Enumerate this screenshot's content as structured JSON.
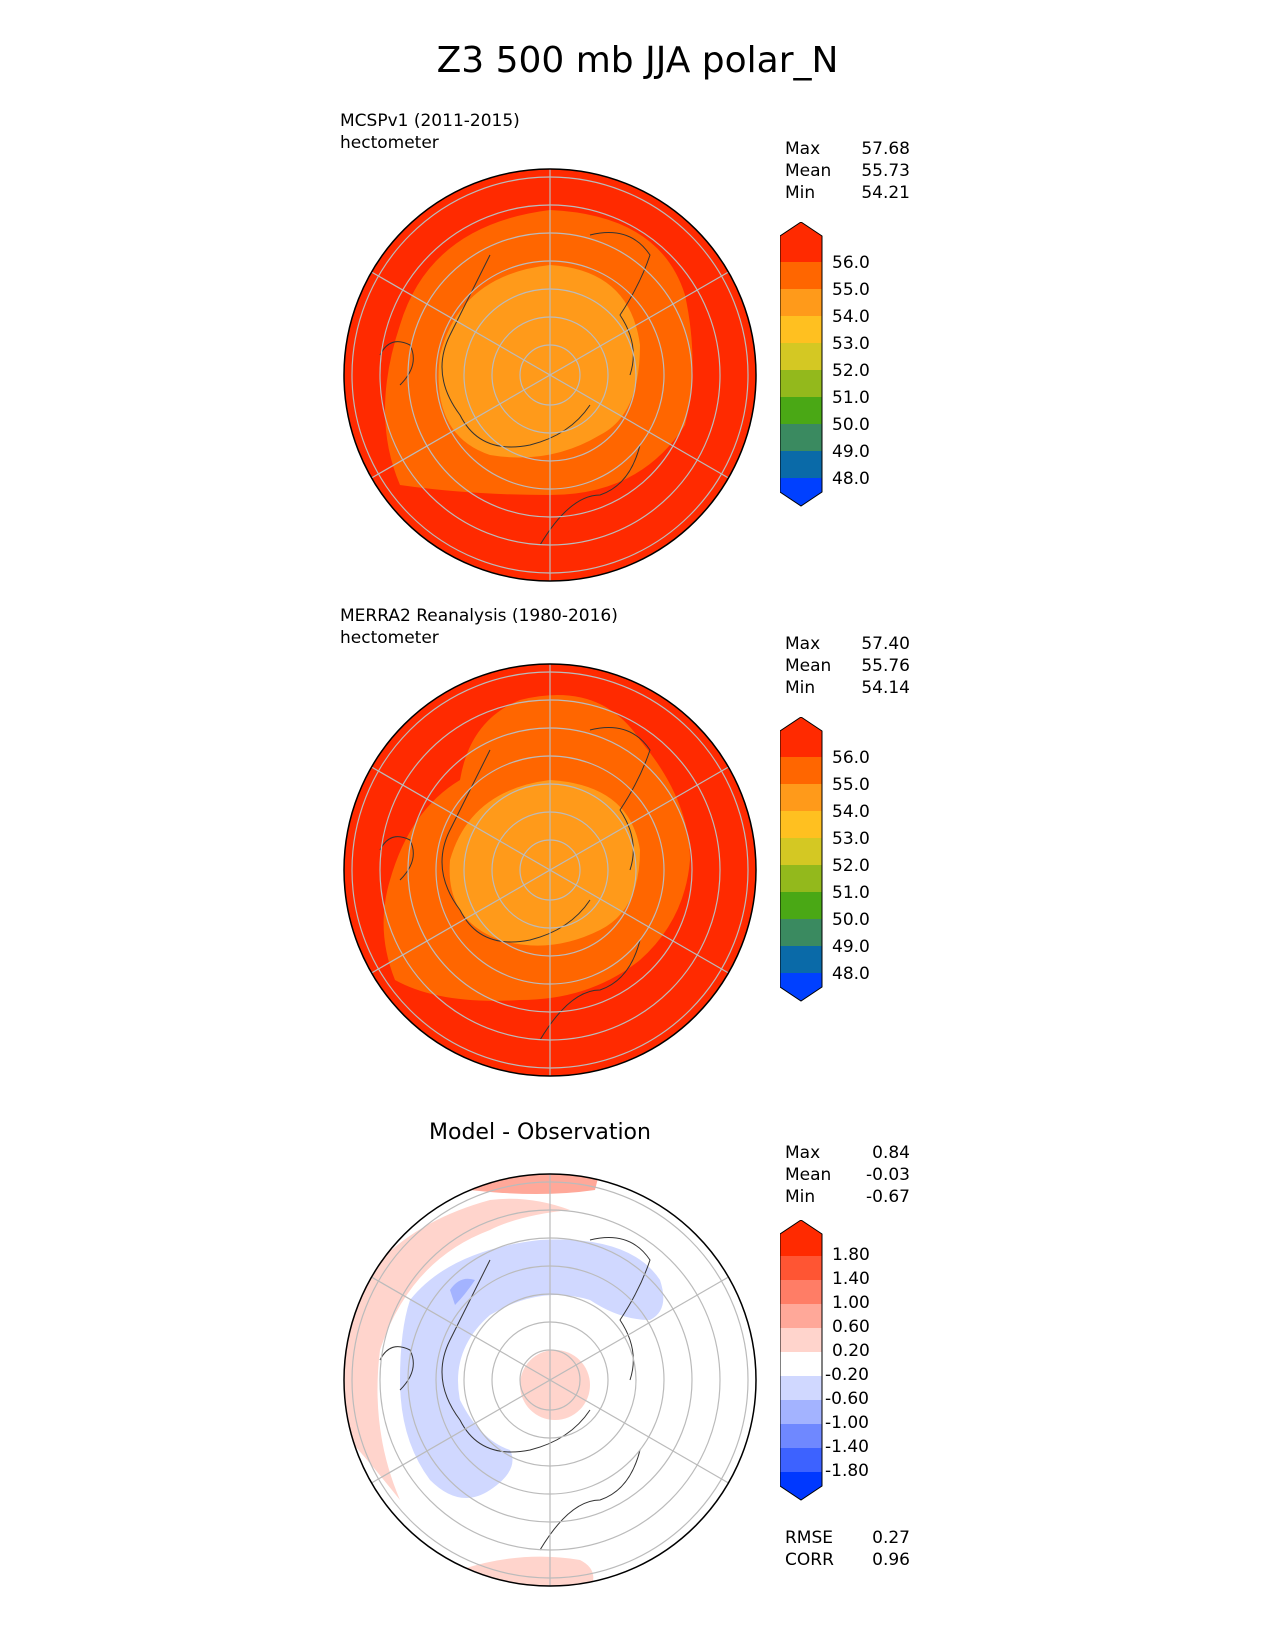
{
  "title": "Z3 500 mb JJA polar_N",
  "panels": [
    {
      "id": "test",
      "title_line1": "MCSPv1 (2011-2015)",
      "title_line2": "hectometer",
      "stats": {
        "max_label": "Max",
        "max": "57.68",
        "mean_label": "Mean",
        "mean": "55.73",
        "min_label": "Min",
        "min": "54.21"
      },
      "colorbar": {
        "ticks": [
          "56.0",
          "55.0",
          "54.0",
          "53.0",
          "52.0",
          "51.0",
          "50.0",
          "49.0",
          "48.0"
        ],
        "colors": [
          "#ff2a00",
          "#ff6600",
          "#ff9a1a",
          "#ffc020",
          "#d4c823",
          "#93b91c",
          "#4aa815",
          "#3a8a60",
          "#0a6aa8",
          "#0040ff"
        ]
      }
    },
    {
      "id": "reference",
      "title_line1": "MERRA2 Reanalysis (1980-2016)",
      "title_line2": "hectometer",
      "stats": {
        "max_label": "Max",
        "max": "57.40",
        "mean_label": "Mean",
        "mean": "55.76",
        "min_label": "Min",
        "min": "54.14"
      },
      "colorbar": {
        "ticks": [
          "56.0",
          "55.0",
          "54.0",
          "53.0",
          "52.0",
          "51.0",
          "50.0",
          "49.0",
          "48.0"
        ],
        "colors": [
          "#ff2a00",
          "#ff6600",
          "#ff9a1a",
          "#ffc020",
          "#d4c823",
          "#93b91c",
          "#4aa815",
          "#3a8a60",
          "#0a6aa8",
          "#0040ff"
        ]
      }
    },
    {
      "id": "diff",
      "title": "Model - Observation",
      "stats": {
        "max_label": "Max",
        "max": "0.84",
        "mean_label": "Mean",
        "mean": "-0.03",
        "min_label": "Min",
        "min": "-0.67"
      },
      "metrics": {
        "rmse_label": "RMSE",
        "rmse": "0.27",
        "corr_label": "CORR",
        "corr": "0.96"
      },
      "colorbar": {
        "ticks": [
          "1.80",
          "1.40",
          "1.00",
          "0.60",
          "0.20",
          "-0.20",
          "-0.60",
          "-1.00",
          "-1.40",
          "-1.80"
        ],
        "colors": [
          "#ff2a00",
          "#ff5533",
          "#ff7d66",
          "#ffa899",
          "#ffd4cc",
          "#ffffff",
          "#d0d8ff",
          "#a3b3ff",
          "#6f88ff",
          "#3d62ff",
          "#0038ff"
        ]
      }
    }
  ],
  "chart_data": [
    {
      "type": "heatmap",
      "projection": "north polar stereographic",
      "title": "MCSPv1 (2011-2015)",
      "units": "hectometer",
      "levels": [
        48,
        49,
        50,
        51,
        52,
        53,
        54,
        55,
        56
      ],
      "extend": "both",
      "stats": {
        "max": 57.68,
        "mean": 55.73,
        "min": 54.21
      }
    },
    {
      "type": "heatmap",
      "projection": "north polar stereographic",
      "title": "MERRA2 Reanalysis (1980-2016)",
      "units": "hectometer",
      "levels": [
        48,
        49,
        50,
        51,
        52,
        53,
        54,
        55,
        56
      ],
      "extend": "both",
      "stats": {
        "max": 57.4,
        "mean": 55.76,
        "min": 54.14
      }
    },
    {
      "type": "heatmap",
      "projection": "north polar stereographic",
      "title": "Model - Observation",
      "levels": [
        -1.8,
        -1.4,
        -1.0,
        -0.6,
        -0.2,
        0.2,
        0.6,
        1.0,
        1.4,
        1.8
      ],
      "extend": "both",
      "stats": {
        "max": 0.84,
        "mean": -0.03,
        "min": -0.67
      },
      "rmse": 0.27,
      "corr": 0.96
    }
  ]
}
